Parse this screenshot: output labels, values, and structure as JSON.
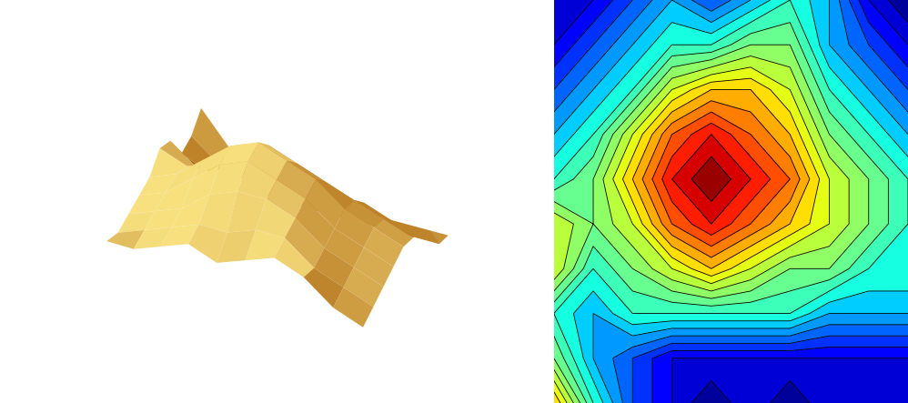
{
  "chart_data": [
    {
      "type": "surface",
      "color": "#d4a64a",
      "tick_labels": false,
      "z": [
        [
          1,
          1,
          2,
          3,
          2,
          3,
          4,
          3,
          1,
          0
        ],
        [
          1,
          2,
          3,
          4,
          4,
          5,
          5,
          3,
          2,
          1
        ],
        [
          2,
          3,
          4,
          6,
          7,
          7,
          6,
          4,
          3,
          2
        ],
        [
          3,
          4,
          6,
          8,
          9,
          8,
          7,
          5,
          4,
          3
        ],
        [
          4,
          5,
          7,
          9,
          10,
          9,
          8,
          6,
          5,
          4
        ],
        [
          6,
          5,
          6,
          8,
          9,
          8,
          7,
          6,
          5,
          4
        ],
        [
          6,
          4,
          5,
          6,
          7,
          6,
          5,
          5,
          4,
          4
        ],
        [
          4,
          3,
          4,
          4,
          4,
          4,
          4,
          3,
          3,
          3
        ],
        [
          5,
          3,
          2,
          1,
          1,
          1,
          1,
          1,
          1,
          1
        ],
        [
          7,
          4,
          2,
          1,
          0,
          1,
          0,
          1,
          1,
          1
        ]
      ]
    },
    {
      "type": "contour",
      "tick_labels": false,
      "levels": [
        0,
        0.5,
        1,
        1.5,
        2,
        2.5,
        3,
        3.5,
        4,
        4.5,
        5,
        5.5,
        6,
        6.5,
        7,
        7.5,
        8,
        8.5,
        9,
        9.5,
        10
      ],
      "z": [
        [
          1,
          1,
          2,
          3,
          2,
          3,
          4,
          3,
          1,
          0
        ],
        [
          1,
          2,
          3,
          4,
          4,
          5,
          5,
          3,
          2,
          1
        ],
        [
          2,
          3,
          4,
          6,
          7,
          7,
          6,
          4,
          3,
          2
        ],
        [
          3,
          4,
          6,
          8,
          9,
          8,
          7,
          5,
          4,
          3
        ],
        [
          4,
          5,
          7,
          9,
          10,
          9,
          8,
          6,
          5,
          4
        ],
        [
          6,
          5,
          6,
          8,
          9,
          8,
          7,
          6,
          5,
          4
        ],
        [
          6,
          4,
          5,
          6,
          7,
          6,
          5,
          5,
          4,
          4
        ],
        [
          4,
          3,
          4,
          4,
          4,
          4,
          4,
          3,
          3,
          3
        ],
        [
          5,
          3,
          2,
          1,
          1,
          1,
          1,
          1,
          1,
          1
        ],
        [
          7,
          4,
          2,
          1,
          0,
          1,
          0,
          1,
          1,
          1
        ]
      ]
    }
  ]
}
